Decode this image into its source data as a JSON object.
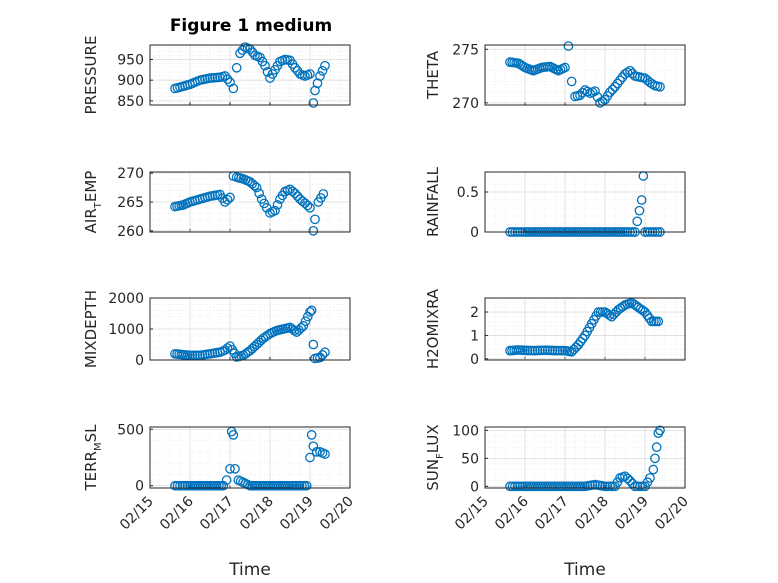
{
  "figure": {
    "title": "Figure 1 medium"
  },
  "chart_data": [
    {
      "type": "scatter",
      "ylabel": "PRESSURE",
      "ylim": [
        840,
        985
      ],
      "yticks": [
        "850",
        "900",
        "950"
      ],
      "grid": true,
      "marker": "circle",
      "color": "#0072bd",
      "x": [
        "02/15 15:00",
        "02/15 18:00",
        "02/16 00:00",
        "02/16 06:00",
        "02/16 12:00",
        "02/16 18:00",
        "02/16 21:00",
        "02/17 00:00",
        "02/17 02:00",
        "02/17 04:00",
        "02/17 06:00",
        "02/17 09:00",
        "02/17 12:00",
        "02/17 15:00",
        "02/17 18:00",
        "02/17 21:00",
        "02/18 00:00",
        "02/18 03:00",
        "02/18 06:00",
        "02/18 09:00",
        "02/18 12:00",
        "02/18 15:00",
        "02/18 18:00",
        "02/18 21:00",
        "02/19 00:00",
        "02/19 02:00",
        "02/19 03:00",
        "02/19 06:00",
        "02/19 09:00"
      ],
      "y": [
        880,
        883,
        890,
        900,
        905,
        907,
        910,
        895,
        880,
        930,
        965,
        980,
        975,
        960,
        955,
        935,
        905,
        925,
        945,
        950,
        948,
        930,
        915,
        910,
        915,
        845,
        875,
        910,
        935
      ]
    },
    {
      "type": "scatter",
      "ylabel": "THETA",
      "ylim": [
        269.8,
        275.4
      ],
      "yticks": [
        "270",
        "275"
      ],
      "grid": true,
      "marker": "circle",
      "color": "#0072bd",
      "x": [
        "02/15 15:00",
        "02/15 20:00",
        "02/16 00:00",
        "02/16 05:00",
        "02/16 10:00",
        "02/16 15:00",
        "02/16 20:00",
        "02/17 00:00",
        "02/17 02:00",
        "02/17 04:00",
        "02/17 06:00",
        "02/17 09:00",
        "02/17 12:00",
        "02/17 15:00",
        "02/17 18:00",
        "02/17 21:00",
        "02/18 00:00",
        "02/18 03:00",
        "02/18 06:00",
        "02/18 09:00",
        "02/18 12:00",
        "02/18 15:00",
        "02/18 18:00",
        "02/18 21:00",
        "02/19 00:00",
        "02/19 03:00",
        "02/19 06:00",
        "02/19 09:00"
      ],
      "y": [
        273.8,
        273.7,
        273.3,
        273.0,
        273.3,
        273.4,
        273.0,
        273.3,
        275.3,
        272.0,
        270.6,
        270.7,
        271.2,
        270.9,
        271.1,
        270.0,
        270.3,
        271.0,
        271.5,
        272.1,
        272.7,
        273.0,
        272.5,
        272.4,
        272.3,
        271.9,
        271.6,
        271.5
      ]
    },
    {
      "type": "scatter",
      "ylabel": "AIR_TEMP",
      "ylim": [
        259.8,
        270.2
      ],
      "yticks": [
        "260",
        "265",
        "270"
      ],
      "grid": true,
      "marker": "circle",
      "color": "#0072bd",
      "x": [
        "02/15 15:00",
        "02/15 20:00",
        "02/16 00:00",
        "02/16 06:00",
        "02/16 12:00",
        "02/16 18:00",
        "02/16 21:00",
        "02/17 00:00",
        "02/17 02:00",
        "02/17 04:00",
        "02/17 08:00",
        "02/17 12:00",
        "02/17 16:00",
        "02/17 19:00",
        "02/17 22:00",
        "02/18 00:00",
        "02/18 03:00",
        "02/18 06:00",
        "02/18 09:00",
        "02/18 12:00",
        "02/18 15:00",
        "02/18 18:00",
        "02/18 21:00",
        "02/19 00:00",
        "02/19 02:00",
        "02/19 03:00",
        "02/19 05:00",
        "02/19 08:00"
      ],
      "y": [
        264.2,
        264.5,
        265.0,
        265.5,
        266.0,
        266.3,
        265.0,
        265.8,
        269.5,
        269.3,
        269.0,
        268.5,
        267.5,
        265.5,
        264.0,
        263.1,
        263.5,
        265.5,
        266.8,
        267.2,
        266.5,
        265.5,
        264.8,
        264.0,
        260.0,
        262.0,
        265.0,
        266.4
      ]
    },
    {
      "type": "scatter",
      "ylabel": "RAINFALL",
      "ylim": [
        0,
        0.75
      ],
      "yticks": [
        "0",
        "0.5"
      ],
      "grid": true,
      "marker": "circle",
      "color": "#0072bd",
      "x": [
        "02/15 15:00",
        "02/16 00:00",
        "02/16 12:00",
        "02/17 00:00",
        "02/17 12:00",
        "02/18 00:00",
        "02/18 12:00",
        "02/18 18:00",
        "02/18 22:00",
        "02/18 23:00",
        "02/19 00:00",
        "02/19 06:00",
        "02/19 09:00"
      ],
      "y": [
        0,
        0,
        0,
        0,
        0,
        0,
        0,
        0,
        0.4,
        0.7,
        0,
        0,
        0
      ]
    },
    {
      "type": "scatter",
      "ylabel": "MIXDEPTH",
      "ylim": [
        0,
        2000
      ],
      "yticks": [
        "0",
        "1000",
        "2000"
      ],
      "grid": true,
      "marker": "circle",
      "color": "#0072bd",
      "x": [
        "02/15 15:00",
        "02/15 20:00",
        "02/16 00:00",
        "02/16 06:00",
        "02/16 12:00",
        "02/16 18:00",
        "02/16 21:00",
        "02/17 00:00",
        "02/17 04:00",
        "02/17 08:00",
        "02/17 12:00",
        "02/17 16:00",
        "02/17 20:00",
        "02/18 00:00",
        "02/18 04:00",
        "02/18 08:00",
        "02/18 12:00",
        "02/18 16:00",
        "02/18 20:00",
        "02/19 00:00",
        "02/19 01:00",
        "02/19 02:00",
        "02/19 03:00",
        "02/19 06:00",
        "02/19 09:00"
      ],
      "y": [
        200,
        170,
        150,
        150,
        200,
        250,
        320,
        450,
        100,
        150,
        300,
        500,
        700,
        850,
        950,
        1000,
        1050,
        900,
        1100,
        1550,
        1600,
        500,
        50,
        80,
        250
      ]
    },
    {
      "type": "scatter",
      "ylabel": "H2OMIXRA",
      "ylim": [
        -0.05,
        2.6
      ],
      "yticks": [
        "0",
        "1",
        "2"
      ],
      "grid": true,
      "marker": "circle",
      "color": "#0072bd",
      "x": [
        "02/15 15:00",
        "02/15 20:00",
        "02/16 00:00",
        "02/16 06:00",
        "02/16 12:00",
        "02/16 18:00",
        "02/17 00:00",
        "02/17 04:00",
        "02/17 08:00",
        "02/17 12:00",
        "02/17 16:00",
        "02/17 20:00",
        "02/18 00:00",
        "02/18 04:00",
        "02/18 08:00",
        "02/18 12:00",
        "02/18 16:00",
        "02/18 20:00",
        "02/19 00:00",
        "02/19 04:00",
        "02/19 08:00"
      ],
      "y": [
        0.35,
        0.38,
        0.36,
        0.35,
        0.37,
        0.35,
        0.35,
        0.3,
        0.6,
        1.0,
        1.5,
        2.0,
        2.0,
        1.8,
        2.1,
        2.3,
        2.4,
        2.2,
        2.0,
        1.6,
        1.6
      ]
    },
    {
      "type": "scatter",
      "ylabel": "TERR_MSL",
      "ylim": [
        -20,
        520
      ],
      "yticks": [
        "0",
        "500"
      ],
      "grid": true,
      "marker": "circle",
      "color": "#0072bd",
      "x": [
        "02/15 15:00",
        "02/16 00:00",
        "02/16 12:00",
        "02/16 20:00",
        "02/16 22:00",
        "02/17 00:00",
        "02/17 01:00",
        "02/17 02:00",
        "02/17 03:00",
        "02/17 05:00",
        "02/17 12:00",
        "02/18 00:00",
        "02/18 12:00",
        "02/18 22:00",
        "02/19 00:00",
        "02/19 01:00",
        "02/19 02:00",
        "02/19 04:00",
        "02/19 06:00",
        "02/19 09:00"
      ],
      "y": [
        0,
        0,
        0,
        0,
        50,
        150,
        480,
        450,
        150,
        50,
        0,
        0,
        0,
        0,
        250,
        450,
        350,
        300,
        300,
        280
      ]
    },
    {
      "type": "scatter",
      "ylabel": "SUN_FLUX",
      "ylim": [
        -3,
        106
      ],
      "yticks": [
        "0",
        "50",
        "100"
      ],
      "grid": true,
      "marker": "circle",
      "color": "#0072bd",
      "x": [
        "02/15 15:00",
        "02/16 00:00",
        "02/16 12:00",
        "02/17 00:00",
        "02/17 12:00",
        "02/17 18:00",
        "02/18 00:00",
        "02/18 06:00",
        "02/18 09:00",
        "02/18 12:00",
        "02/18 15:00",
        "02/18 18:00",
        "02/19 00:00",
        "02/19 03:00",
        "02/19 05:00",
        "02/19 06:00",
        "02/19 07:00",
        "02/19 08:00",
        "02/19 09:00"
      ],
      "y": [
        0,
        0,
        0,
        0,
        0,
        3,
        0,
        0,
        15,
        18,
        10,
        0,
        0,
        15,
        30,
        50,
        70,
        95,
        100
      ]
    }
  ],
  "x_axis": {
    "xlabel": "Time",
    "xticks": [
      "02/15",
      "02/16",
      "02/17",
      "02/18",
      "02/19",
      "02/20"
    ]
  }
}
